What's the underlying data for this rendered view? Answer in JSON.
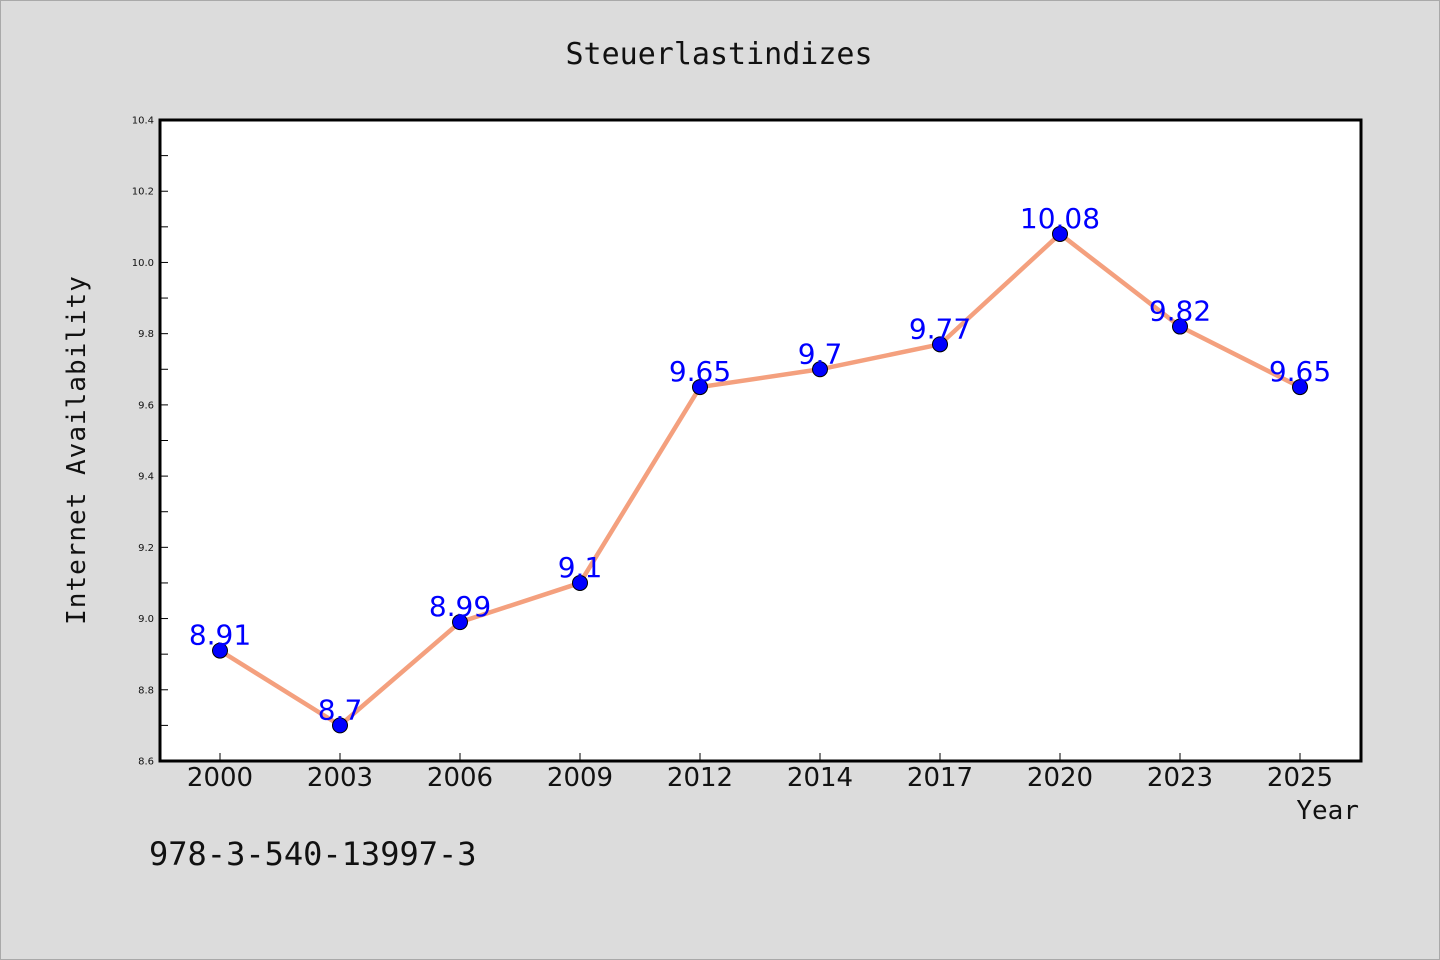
{
  "chart_data": {
    "type": "line",
    "title": "Steuerlastindizes",
    "xlabel": "Year",
    "ylabel": "Internet Availability",
    "categories": [
      "2000",
      "2003",
      "2006",
      "2009",
      "2012",
      "2014",
      "2017",
      "2020",
      "2023",
      "2025"
    ],
    "series": [
      {
        "values": [
          8.91,
          8.7,
          8.99,
          9.1,
          9.65,
          9.7,
          9.77,
          10.08,
          9.82,
          9.65
        ],
        "value_labels": [
          "8.91",
          "8.7",
          "8.99",
          "9.1",
          "9.65",
          "9.7",
          "9.77",
          "10.08",
          "9.82",
          "9.65"
        ]
      }
    ],
    "ylim": [
      8.6,
      10.4
    ],
    "y_ticks": [
      "8.6",
      "8.8",
      "9.0",
      "9.2",
      "9.4",
      "9.6",
      "9.8",
      "10.0",
      "10.2",
      "10.4"
    ],
    "grid": false,
    "legend": "none",
    "colors": {
      "line": "#f4a07e",
      "marker": "#0000ff",
      "data_label": "#0000ff",
      "plot_background": "#ffffff",
      "figure_background": "#dcdcdc"
    }
  },
  "footnote": "978-3-540-13997-3"
}
